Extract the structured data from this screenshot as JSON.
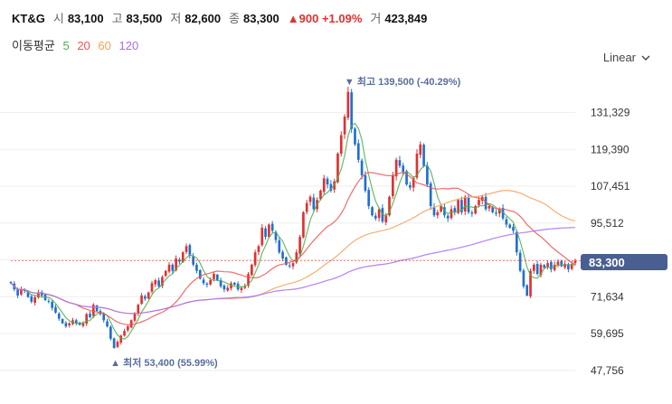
{
  "header": {
    "ticker": "KT&G",
    "open_label": "시",
    "open": "83,100",
    "high_label": "고",
    "high": "83,500",
    "low_label": "저",
    "low": "82,600",
    "close_label": "종",
    "close": "83,300",
    "change": "▲900 +1.09%",
    "volume_label": "거",
    "volume": "423,849"
  },
  "ma_legend": {
    "title": "이동평균",
    "p5": "5",
    "p20": "20",
    "p60": "60",
    "p120": "120"
  },
  "scale_button": {
    "label": "Linear"
  },
  "colors": {
    "up": "#e0312f",
    "down": "#1f6fd1",
    "ma5": "#4caf50",
    "ma20": "#ef5350",
    "ma60": "#f5a05a",
    "ma120": "#a66cf0",
    "badge": "#4a5f91"
  },
  "chart_data": {
    "type": "candlestick",
    "y_ticks": [
      "131,329",
      "119,390",
      "107,451",
      "95,512",
      "83,573",
      "71,634",
      "59,695",
      "47,756"
    ],
    "ylim": [
      45000,
      152000
    ],
    "current_price": "83,300",
    "high_note": "최고 139,500 (-40.29%)",
    "low_note": "최저 53,400 (55.99%)",
    "ma_periods": [
      5,
      20,
      60,
      120
    ],
    "closes": [
      76000,
      74000,
      72000,
      74000,
      73500,
      71500,
      70000,
      71500,
      73000,
      72000,
      70500,
      70000,
      68000,
      66500,
      64500,
      63000,
      62000,
      63000,
      64000,
      63000,
      62500,
      63000,
      66000,
      65000,
      69000,
      67000,
      66000,
      64000,
      62000,
      58000,
      55000,
      57000,
      59000,
      60500,
      62000,
      64000,
      66000,
      69000,
      72000,
      71000,
      73000,
      76000,
      77000,
      75000,
      78000,
      80000,
      82000,
      80000,
      84000,
      83000,
      86000,
      88000,
      85000,
      82000,
      80000,
      77500,
      76000,
      75500,
      77000,
      79000,
      77000,
      75000,
      74000,
      74500,
      76000,
      75500,
      74000,
      74500,
      75000,
      79000,
      82000,
      86000,
      88000,
      94000,
      91000,
      95000,
      93000,
      90000,
      86000,
      84000,
      82000,
      81500,
      82500,
      86000,
      91000,
      99000,
      102000,
      104000,
      100000,
      103000,
      106000,
      110000,
      108000,
      106000,
      109000,
      118000,
      124000,
      130000,
      138000,
      126000,
      121000,
      116000,
      111000,
      106000,
      101000,
      98000,
      97000,
      100000,
      96000,
      98000,
      104000,
      111000,
      116000,
      114000,
      112000,
      108000,
      107000,
      110000,
      118000,
      121000,
      114000,
      108000,
      101000,
      98000,
      99000,
      101000,
      98000,
      97000,
      100000,
      99000,
      103000,
      99000,
      104000,
      99000,
      98500,
      101000,
      103000,
      104000,
      100000,
      101000,
      99000,
      98500,
      100000,
      97000,
      95000,
      94000,
      93000,
      86000,
      80000,
      75000,
      72000,
      80000,
      82000,
      79000,
      82000,
      81000,
      82500,
      80500,
      82000,
      83000,
      81500,
      82300,
      80500,
      82200,
      83300
    ]
  }
}
